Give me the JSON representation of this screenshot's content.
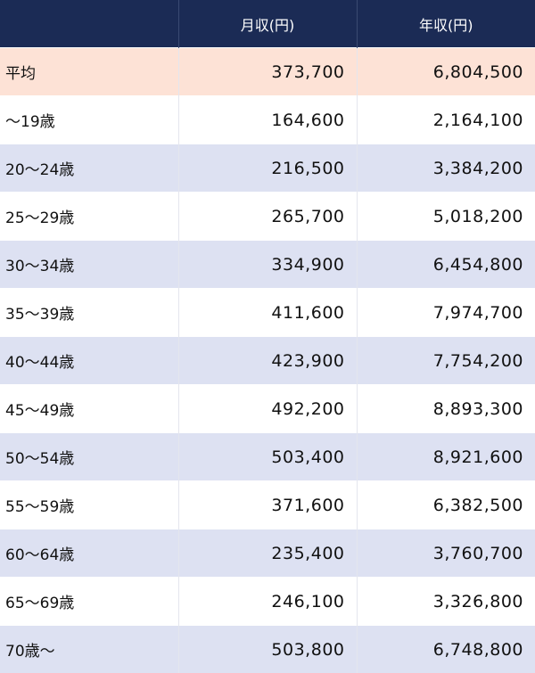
{
  "header": {
    "col_label": "",
    "col_monthly": "月収(円)",
    "col_annual": "年収(円)"
  },
  "colors": {
    "header_bg": "#1b2b55",
    "average_row_bg": "#fde2d6",
    "band_row_bg": "#dde1f2",
    "plain_row_bg": "#ffffff"
  },
  "rows": [
    {
      "label": "平均",
      "monthly": "373,700",
      "annual": "6,804,500"
    },
    {
      "label": "～19歳",
      "monthly": "164,600",
      "annual": "2,164,100"
    },
    {
      "label": "20～24歳",
      "monthly": "216,500",
      "annual": "3,384,200"
    },
    {
      "label": "25～29歳",
      "monthly": "265,700",
      "annual": "5,018,200"
    },
    {
      "label": "30～34歳",
      "monthly": "334,900",
      "annual": "6,454,800"
    },
    {
      "label": "35～39歳",
      "monthly": "411,600",
      "annual": "7,974,700"
    },
    {
      "label": "40～44歳",
      "monthly": "423,900",
      "annual": "7,754,200"
    },
    {
      "label": "45～49歳",
      "monthly": "492,200",
      "annual": "8,893,300"
    },
    {
      "label": "50～54歳",
      "monthly": "503,400",
      "annual": "8,921,600"
    },
    {
      "label": "55～59歳",
      "monthly": "371,600",
      "annual": "6,382,500"
    },
    {
      "label": "60～64歳",
      "monthly": "235,400",
      "annual": "3,760,700"
    },
    {
      "label": "65～69歳",
      "monthly": "246,100",
      "annual": "3,326,800"
    },
    {
      "label": "70歳～",
      "monthly": "503,800",
      "annual": "6,748,800"
    }
  ]
}
